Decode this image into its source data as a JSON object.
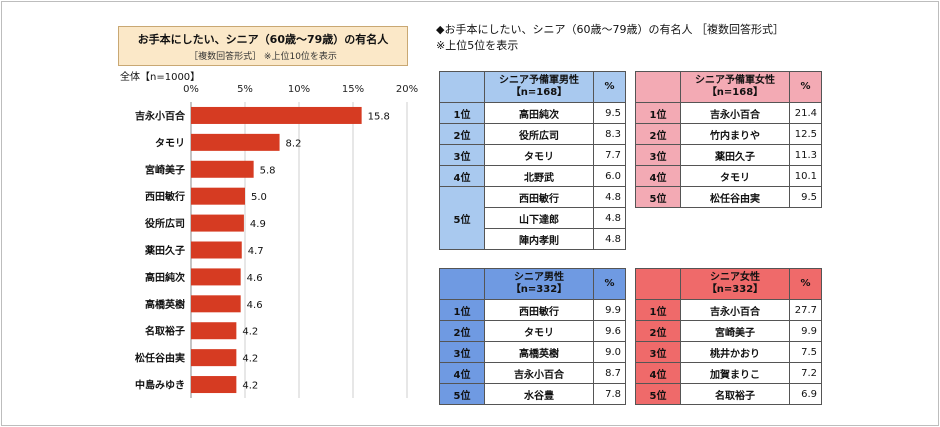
{
  "left_chart": {
    "title": "お手本にしたい、シニア（60歳～79歳）の有名人",
    "subtitle": "［複数回答形式］ ※上位10位を表示",
    "n_label": "全体【n=1000】"
  },
  "chart_data": {
    "type": "bar",
    "orientation": "horizontal",
    "categories": [
      "吉永小百合",
      "タモリ",
      "宮崎美子",
      "西田敏行",
      "役所広司",
      "薬田久子",
      "高田純次",
      "高橋英樹",
      "名取裕子",
      "松任谷由実",
      "中島みゆき"
    ],
    "values": [
      15.8,
      8.2,
      5.8,
      5.0,
      4.9,
      4.7,
      4.6,
      4.6,
      4.2,
      4.2,
      4.2
    ],
    "data_labels": [
      "15.8",
      "8.2",
      "5.8",
      "5.0",
      "4.9",
      "4.7",
      "4.6",
      "4.6",
      "4.2",
      "4.2",
      "4.2"
    ],
    "xlim": [
      0,
      20
    ],
    "xticks": [
      "0%",
      "5%",
      "10%",
      "15%",
      "20%"
    ],
    "gridlines": true,
    "bar_color": "#d63b22"
  },
  "right": {
    "title": "◆お手本にしたい、シニア（60歳～79歳）の有名人 ［複数回答形式］",
    "note": "※上位5位を表示"
  },
  "tables": {
    "t1": {
      "header": [
        "シニア予備軍男性",
        "【n=168】"
      ],
      "pct": "%",
      "rows": [
        {
          "rank": "1位",
          "name": "高田純次",
          "value": "9.5"
        },
        {
          "rank": "2位",
          "name": "役所広司",
          "value": "8.3"
        },
        {
          "rank": "3位",
          "name": "タモリ",
          "value": "7.7"
        },
        {
          "rank": "4位",
          "name": "北野武",
          "value": "6.0"
        },
        {
          "rank": "5位",
          "name": "西田敏行",
          "value": "4.8"
        },
        {
          "rank": "",
          "name": "山下達郎",
          "value": "4.8"
        },
        {
          "rank": "",
          "name": "陣内孝則",
          "value": "4.8"
        }
      ]
    },
    "t2": {
      "header": [
        "シニア予備軍女性",
        "【n=168】"
      ],
      "pct": "%",
      "rows": [
        {
          "rank": "1位",
          "name": "吉永小百合",
          "value": "21.4"
        },
        {
          "rank": "2位",
          "name": "竹内まりや",
          "value": "12.5"
        },
        {
          "rank": "3位",
          "name": "薬田久子",
          "value": "11.3"
        },
        {
          "rank": "4位",
          "name": "タモリ",
          "value": "10.1"
        },
        {
          "rank": "5位",
          "name": "松任谷由実",
          "value": "9.5"
        }
      ]
    },
    "t3": {
      "header": [
        "シニア男性",
        "【n=332】"
      ],
      "pct": "%",
      "rows": [
        {
          "rank": "1位",
          "name": "西田敏行",
          "value": "9.9"
        },
        {
          "rank": "2位",
          "name": "タモリ",
          "value": "9.6"
        },
        {
          "rank": "3位",
          "name": "高橋英樹",
          "value": "9.0"
        },
        {
          "rank": "4位",
          "name": "吉永小百合",
          "value": "8.7"
        },
        {
          "rank": "5位",
          "name": "水谷豊",
          "value": "7.8"
        }
      ]
    },
    "t4": {
      "header": [
        "シニア女性",
        "【n=332】"
      ],
      "pct": "%",
      "rows": [
        {
          "rank": "1位",
          "name": "吉永小百合",
          "value": "27.7"
        },
        {
          "rank": "2位",
          "name": "宮崎美子",
          "value": "9.9"
        },
        {
          "rank": "3位",
          "name": "桃井かおり",
          "value": "7.5"
        },
        {
          "rank": "4位",
          "name": "加賀まりこ",
          "value": "7.2"
        },
        {
          "rank": "5位",
          "name": "名取裕子",
          "value": "6.9"
        }
      ]
    }
  }
}
